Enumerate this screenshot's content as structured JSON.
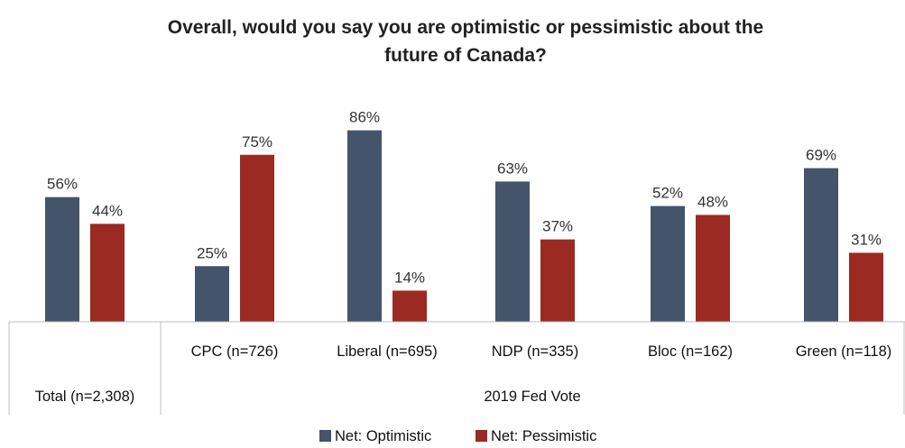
{
  "chart_data": {
    "type": "bar",
    "title_line1": "Overall, would you say you are optimistic or pessimistic about the",
    "title_line2": "future of Canada?",
    "categories": [
      "Total (n=2,308)",
      "CPC (n=726)",
      "Liberal (n=695)",
      "NDP (n=335)",
      "Bloc (n=162)",
      "Green (n=118)"
    ],
    "group_label": "2019 Fed Vote",
    "series": [
      {
        "name": "Net: Optimistic",
        "color": "#44546a",
        "values": [
          56,
          25,
          86,
          63,
          52,
          69
        ]
      },
      {
        "name": "Net: Pessimistic",
        "color": "#9a2a22",
        "values": [
          44,
          75,
          14,
          37,
          48,
          31
        ]
      }
    ],
    "value_suffix": "%",
    "ylim": [
      0,
      100
    ],
    "legend_position": "bottom",
    "grid": false
  }
}
